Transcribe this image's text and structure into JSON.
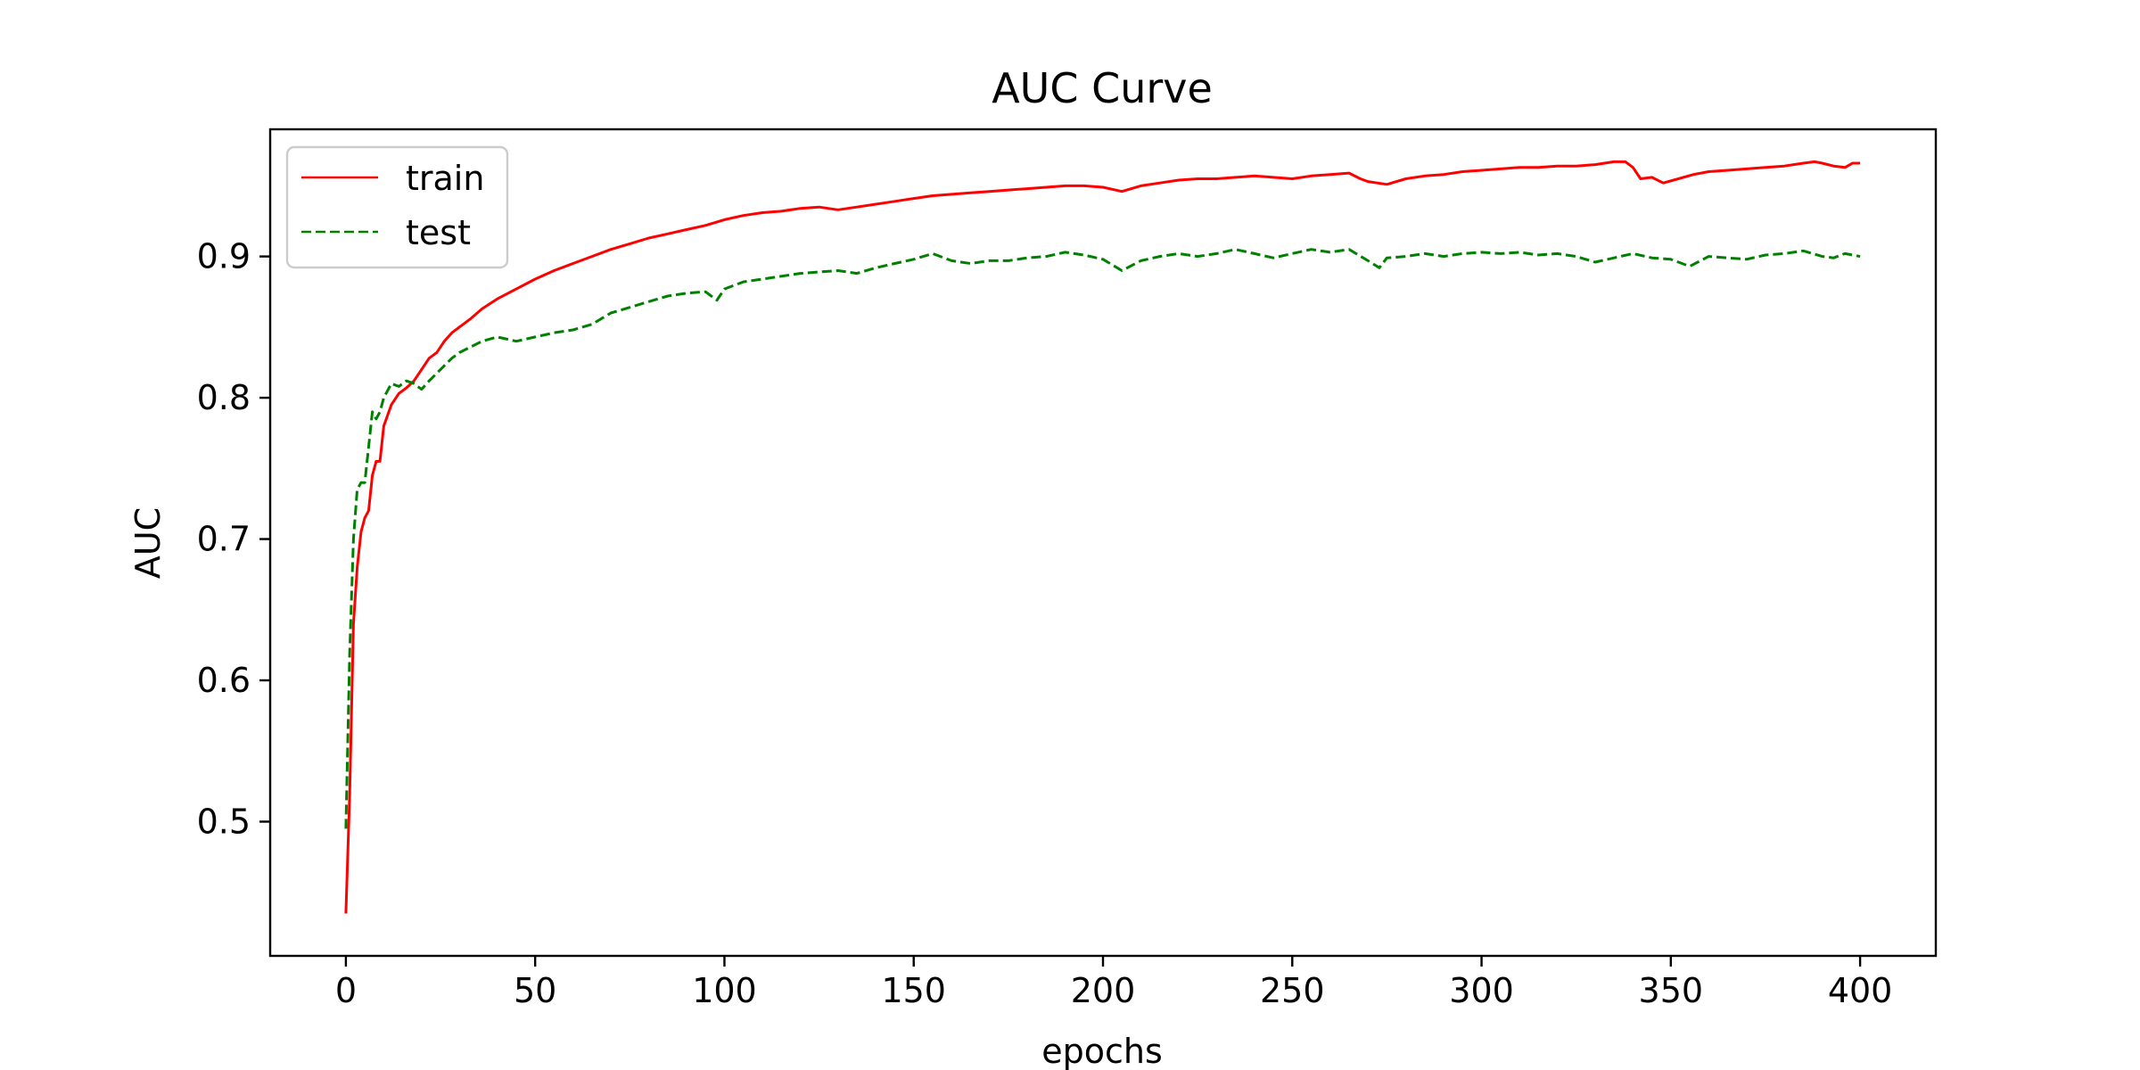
{
  "chart_data": {
    "type": "line",
    "title": "AUC Curve",
    "xlabel": "epochs",
    "ylabel": "AUC",
    "xlim": [
      -20,
      420
    ],
    "ylim": [
      0.405,
      0.99
    ],
    "xticks": [
      0,
      50,
      100,
      150,
      200,
      250,
      300,
      350,
      400
    ],
    "yticks": [
      0.5,
      0.6,
      0.7,
      0.8,
      0.9
    ],
    "grid": false,
    "legend_position": "top-left",
    "series": [
      {
        "name": "train",
        "color": "#ff0000",
        "linestyle": "solid",
        "points": [
          [
            0,
            0.435
          ],
          [
            1,
            0.52
          ],
          [
            2,
            0.64
          ],
          [
            3,
            0.68
          ],
          [
            4,
            0.705
          ],
          [
            5,
            0.715
          ],
          [
            6,
            0.72
          ],
          [
            7,
            0.745
          ],
          [
            8,
            0.755
          ],
          [
            9,
            0.755
          ],
          [
            10,
            0.78
          ],
          [
            12,
            0.795
          ],
          [
            14,
            0.803
          ],
          [
            16,
            0.807
          ],
          [
            18,
            0.812
          ],
          [
            20,
            0.82
          ],
          [
            22,
            0.828
          ],
          [
            24,
            0.832
          ],
          [
            26,
            0.84
          ],
          [
            28,
            0.846
          ],
          [
            30,
            0.85
          ],
          [
            33,
            0.856
          ],
          [
            36,
            0.863
          ],
          [
            40,
            0.87
          ],
          [
            45,
            0.877
          ],
          [
            50,
            0.884
          ],
          [
            55,
            0.89
          ],
          [
            60,
            0.895
          ],
          [
            65,
            0.9
          ],
          [
            70,
            0.905
          ],
          [
            75,
            0.909
          ],
          [
            80,
            0.913
          ],
          [
            85,
            0.916
          ],
          [
            90,
            0.919
          ],
          [
            95,
            0.922
          ],
          [
            100,
            0.926
          ],
          [
            105,
            0.929
          ],
          [
            110,
            0.931
          ],
          [
            115,
            0.932
          ],
          [
            120,
            0.934
          ],
          [
            125,
            0.935
          ],
          [
            130,
            0.933
          ],
          [
            135,
            0.935
          ],
          [
            140,
            0.937
          ],
          [
            145,
            0.939
          ],
          [
            150,
            0.941
          ],
          [
            155,
            0.943
          ],
          [
            160,
            0.944
          ],
          [
            165,
            0.945
          ],
          [
            170,
            0.946
          ],
          [
            175,
            0.947
          ],
          [
            180,
            0.948
          ],
          [
            185,
            0.949
          ],
          [
            190,
            0.95
          ],
          [
            195,
            0.95
          ],
          [
            200,
            0.949
          ],
          [
            205,
            0.946
          ],
          [
            210,
            0.95
          ],
          [
            215,
            0.952
          ],
          [
            220,
            0.954
          ],
          [
            225,
            0.955
          ],
          [
            230,
            0.955
          ],
          [
            235,
            0.956
          ],
          [
            240,
            0.957
          ],
          [
            245,
            0.956
          ],
          [
            250,
            0.955
          ],
          [
            255,
            0.957
          ],
          [
            260,
            0.958
          ],
          [
            265,
            0.959
          ],
          [
            268,
            0.955
          ],
          [
            270,
            0.953
          ],
          [
            275,
            0.951
          ],
          [
            280,
            0.955
          ],
          [
            285,
            0.957
          ],
          [
            290,
            0.958
          ],
          [
            295,
            0.96
          ],
          [
            300,
            0.961
          ],
          [
            305,
            0.962
          ],
          [
            310,
            0.963
          ],
          [
            315,
            0.963
          ],
          [
            320,
            0.964
          ],
          [
            325,
            0.964
          ],
          [
            330,
            0.965
          ],
          [
            335,
            0.967
          ],
          [
            338,
            0.967
          ],
          [
            340,
            0.963
          ],
          [
            342,
            0.955
          ],
          [
            345,
            0.956
          ],
          [
            348,
            0.952
          ],
          [
            352,
            0.955
          ],
          [
            356,
            0.958
          ],
          [
            360,
            0.96
          ],
          [
            365,
            0.961
          ],
          [
            370,
            0.962
          ],
          [
            375,
            0.963
          ],
          [
            380,
            0.964
          ],
          [
            385,
            0.966
          ],
          [
            388,
            0.967
          ],
          [
            390,
            0.966
          ],
          [
            393,
            0.964
          ],
          [
            396,
            0.963
          ],
          [
            398,
            0.966
          ],
          [
            400,
            0.966
          ]
        ]
      },
      {
        "name": "test",
        "color": "#008000",
        "linestyle": "dashed",
        "points": [
          [
            0,
            0.495
          ],
          [
            1,
            0.62
          ],
          [
            2,
            0.7
          ],
          [
            3,
            0.735
          ],
          [
            4,
            0.74
          ],
          [
            5,
            0.74
          ],
          [
            6,
            0.765
          ],
          [
            7,
            0.79
          ],
          [
            8,
            0.785
          ],
          [
            9,
            0.79
          ],
          [
            10,
            0.8
          ],
          [
            12,
            0.81
          ],
          [
            14,
            0.808
          ],
          [
            16,
            0.812
          ],
          [
            18,
            0.81
          ],
          [
            20,
            0.806
          ],
          [
            22,
            0.812
          ],
          [
            25,
            0.82
          ],
          [
            28,
            0.828
          ],
          [
            30,
            0.832
          ],
          [
            33,
            0.836
          ],
          [
            36,
            0.84
          ],
          [
            40,
            0.843
          ],
          [
            45,
            0.84
          ],
          [
            50,
            0.843
          ],
          [
            55,
            0.846
          ],
          [
            60,
            0.848
          ],
          [
            65,
            0.852
          ],
          [
            70,
            0.86
          ],
          [
            75,
            0.864
          ],
          [
            80,
            0.868
          ],
          [
            85,
            0.872
          ],
          [
            90,
            0.874
          ],
          [
            95,
            0.875
          ],
          [
            98,
            0.869
          ],
          [
            100,
            0.877
          ],
          [
            105,
            0.882
          ],
          [
            110,
            0.884
          ],
          [
            115,
            0.886
          ],
          [
            120,
            0.888
          ],
          [
            125,
            0.889
          ],
          [
            130,
            0.89
          ],
          [
            135,
            0.888
          ],
          [
            140,
            0.892
          ],
          [
            145,
            0.895
          ],
          [
            150,
            0.898
          ],
          [
            155,
            0.902
          ],
          [
            160,
            0.897
          ],
          [
            165,
            0.895
          ],
          [
            170,
            0.897
          ],
          [
            175,
            0.897
          ],
          [
            180,
            0.899
          ],
          [
            185,
            0.9
          ],
          [
            190,
            0.903
          ],
          [
            195,
            0.901
          ],
          [
            200,
            0.898
          ],
          [
            205,
            0.89
          ],
          [
            210,
            0.897
          ],
          [
            215,
            0.9
          ],
          [
            220,
            0.902
          ],
          [
            225,
            0.9
          ],
          [
            230,
            0.902
          ],
          [
            235,
            0.905
          ],
          [
            240,
            0.902
          ],
          [
            245,
            0.899
          ],
          [
            250,
            0.902
          ],
          [
            255,
            0.905
          ],
          [
            260,
            0.903
          ],
          [
            265,
            0.905
          ],
          [
            270,
            0.897
          ],
          [
            273,
            0.892
          ],
          [
            275,
            0.899
          ],
          [
            280,
            0.9
          ],
          [
            285,
            0.902
          ],
          [
            290,
            0.9
          ],
          [
            295,
            0.902
          ],
          [
            300,
            0.903
          ],
          [
            305,
            0.902
          ],
          [
            310,
            0.903
          ],
          [
            315,
            0.901
          ],
          [
            320,
            0.902
          ],
          [
            325,
            0.9
          ],
          [
            330,
            0.896
          ],
          [
            335,
            0.899
          ],
          [
            340,
            0.902
          ],
          [
            345,
            0.899
          ],
          [
            350,
            0.898
          ],
          [
            355,
            0.893
          ],
          [
            360,
            0.9
          ],
          [
            365,
            0.899
          ],
          [
            370,
            0.898
          ],
          [
            375,
            0.901
          ],
          [
            380,
            0.902
          ],
          [
            385,
            0.904
          ],
          [
            390,
            0.9
          ],
          [
            393,
            0.899
          ],
          [
            396,
            0.902
          ],
          [
            400,
            0.9
          ]
        ]
      }
    ]
  }
}
